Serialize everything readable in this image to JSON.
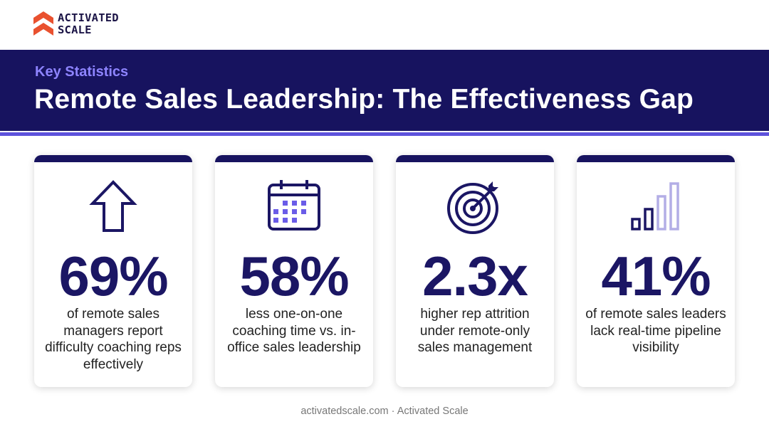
{
  "brand": {
    "logo_line1": "ACTIVATED",
    "logo_line2": "SCALE",
    "logo_icon": "chevron-logo-icon",
    "accent_color": "#e9512f"
  },
  "header": {
    "kicker": "Key Statistics",
    "title": "Remote Sales Leadership: The Effectiveness Gap",
    "banner_color": "#17135f",
    "stripe_color": "#5e52dc"
  },
  "cards": [
    {
      "icon": "arrow-up-icon",
      "stat": "69%",
      "description": "of remote sales managers report difficulty coaching reps effectively"
    },
    {
      "icon": "calendar-icon",
      "stat": "58%",
      "description": "less one-on-one coaching time vs. in-office sales leadership"
    },
    {
      "icon": "target-icon",
      "stat": "2.3x",
      "description": "higher rep attrition under remote-only sales management"
    },
    {
      "icon": "signal-bars-icon",
      "stat": "41%",
      "description": "of remote sales leaders lack real-time pipeline visibility"
    }
  ],
  "footer": {
    "text": "activatedscale.com · Activated Scale"
  }
}
